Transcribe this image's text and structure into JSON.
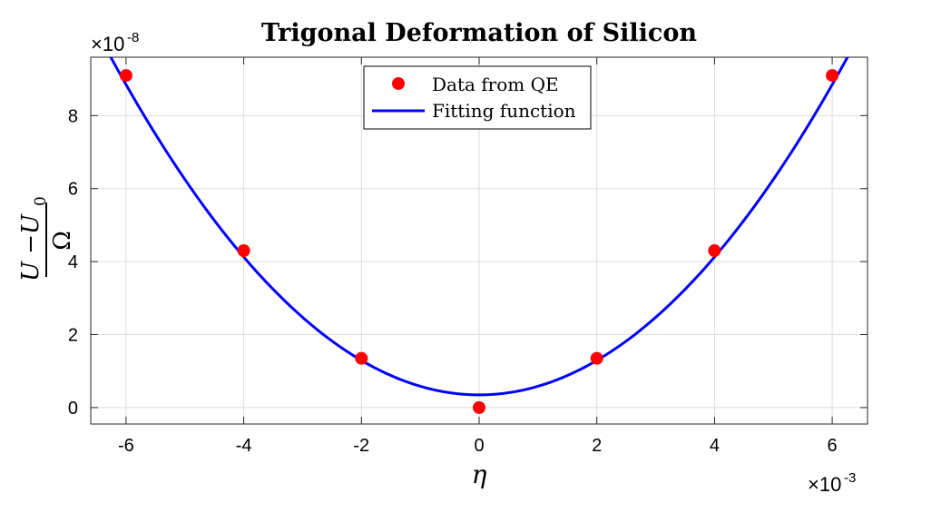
{
  "chart_data": {
    "type": "scatter",
    "title": "Trigonal Deformation of Silicon",
    "xlabel": "η",
    "ylabel": {
      "numerator": "U −U",
      "numerator_sub": "0",
      "denominator": "Ω"
    },
    "x_exponent_base": "×10",
    "x_exponent_power": "-3",
    "y_exponent_base": "×10",
    "y_exponent_power": "-8",
    "xlim": [
      -6.6,
      6.6
    ],
    "ylim": [
      -0.45,
      9.6
    ],
    "xticks": [
      -6,
      -4,
      -2,
      0,
      2,
      4,
      6
    ],
    "xtick_labels": [
      "-6",
      "-4",
      "-2",
      "0",
      "2",
      "4",
      "6"
    ],
    "yticks": [
      0,
      2,
      4,
      6,
      8
    ],
    "ytick_labels": [
      "0",
      "2",
      "4",
      "6",
      "8"
    ],
    "grid": true,
    "legend_position": "top-center",
    "series": [
      {
        "name": "Data from QE",
        "kind": "scatter",
        "color": "#ff0000",
        "x": [
          -6,
          -4,
          -2,
          0,
          2,
          4,
          6
        ],
        "y": [
          9.1,
          4.3,
          1.35,
          0.0,
          1.35,
          4.3,
          9.1
        ]
      },
      {
        "name": "Fitting function",
        "kind": "line",
        "color": "#0000ff",
        "x": [
          -6.6,
          -6.0,
          -5.0,
          -4.0,
          -3.0,
          -2.0,
          -1.0,
          0.0,
          1.0,
          2.0,
          3.0,
          4.0,
          5.0,
          6.0,
          6.6
        ],
        "y": [
          10.55,
          8.9,
          6.3,
          4.15,
          2.5,
          1.3,
          0.55,
          0.27,
          0.55,
          1.3,
          2.5,
          4.15,
          6.3,
          8.9,
          10.55
        ]
      }
    ]
  }
}
